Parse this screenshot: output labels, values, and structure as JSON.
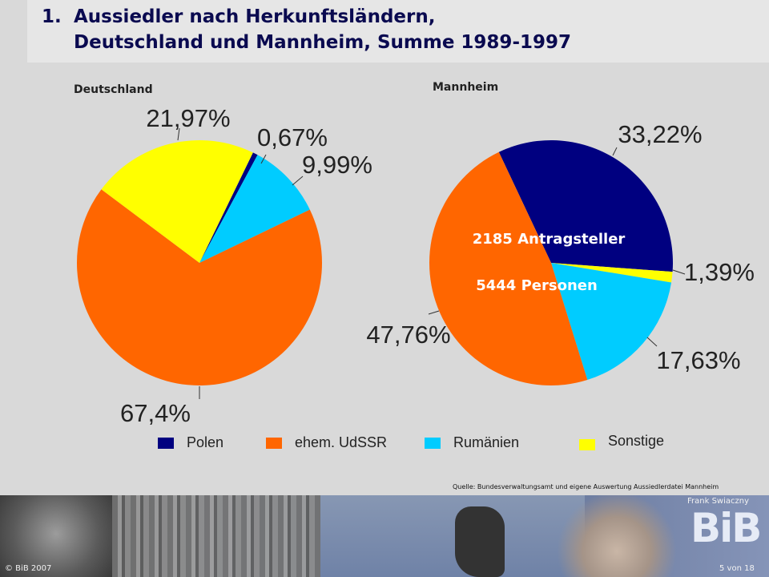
{
  "title": {
    "number": "1.",
    "line1": "Aussiedler nach Herkunftsländern,",
    "line2": "Deutschland und Mannheim, Summe 1989-1997"
  },
  "chart_data": [
    {
      "type": "pie",
      "title": "Deutschland",
      "categories": [
        "Polen",
        "ehem. UdSSR",
        "Rumänien",
        "Sonstige"
      ],
      "values": [
        0.67,
        67.4,
        9.99,
        21.97
      ],
      "labels": [
        "0,67%",
        "67,4%",
        "9,99%",
        "21,97%"
      ],
      "colors": [
        "#000080",
        "#ff6600",
        "#00ccff",
        "#ffff00"
      ]
    },
    {
      "type": "pie",
      "title": "Mannheim",
      "categories": [
        "Polen",
        "ehem. UdSSR",
        "Rumänien",
        "Sonstige"
      ],
      "values": [
        33.22,
        47.76,
        17.63,
        1.39
      ],
      "labels": [
        "33,22%",
        "47,76%",
        "17,63%",
        "1,39%"
      ],
      "colors": [
        "#000080",
        "#ff6600",
        "#00ccff",
        "#ffff00"
      ],
      "annotations": [
        "2185 Antragsteller",
        "5444 Personen"
      ]
    }
  ],
  "legend": [
    {
      "label": "Polen",
      "color": "#000080"
    },
    {
      "label": "ehem. UdSSR",
      "color": "#ff6600"
    },
    {
      "label": "Rumänien",
      "color": "#00ccff"
    },
    {
      "label": "Sonstige",
      "color": "#ffff00"
    }
  ],
  "source": "Quelle: Bundesverwaltungsamt und eigene Auswertung Aussiedlerdatei Mannheim",
  "footer": {
    "author": "Frank Swiaczny",
    "logo": "BiB",
    "copyright": "© BiB 2007",
    "page": "5 von 18"
  }
}
